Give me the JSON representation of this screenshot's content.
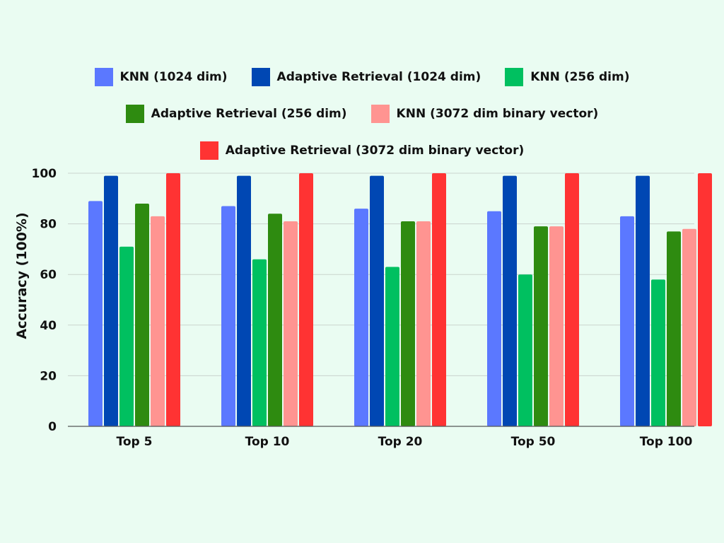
{
  "chart_data": {
    "type": "bar",
    "title": "",
    "xlabel": "",
    "ylabel": "Accuracy (100%)",
    "ylim": [
      0,
      100
    ],
    "yticks": [
      "0",
      "20",
      "40",
      "60",
      "80",
      "100"
    ],
    "ytick_values": [
      0,
      20,
      40,
      60,
      80,
      100
    ],
    "grid": true,
    "legend_position": "top",
    "categories": [
      "Top 5",
      "Top 10",
      "Top 20",
      "Top 50",
      "Top 100"
    ],
    "series": [
      {
        "name": "KNN (1024 dim)",
        "color": "#5b78ff",
        "values": [
          89,
          87,
          86,
          85,
          83
        ]
      },
      {
        "name": "Adaptive Retrieval (1024 dim)",
        "color": "#0047b3",
        "values": [
          99,
          99,
          99,
          99,
          99
        ]
      },
      {
        "name": "KNN (256 dim)",
        "color": "#00c060",
        "values": [
          71,
          66,
          63,
          60,
          58
        ]
      },
      {
        "name": "Adaptive Retrieval (256 dim)",
        "color": "#2e8b10",
        "values": [
          88,
          84,
          81,
          79,
          77
        ]
      },
      {
        "name": "KNN (3072 dim binary vector)",
        "color": "#ff9491",
        "values": [
          83,
          81,
          81,
          79,
          78
        ]
      },
      {
        "name": "Adaptive Retrieval (3072 dim binary vector)",
        "color": "#ff3333",
        "values": [
          100,
          100,
          100,
          100,
          100
        ]
      }
    ]
  }
}
